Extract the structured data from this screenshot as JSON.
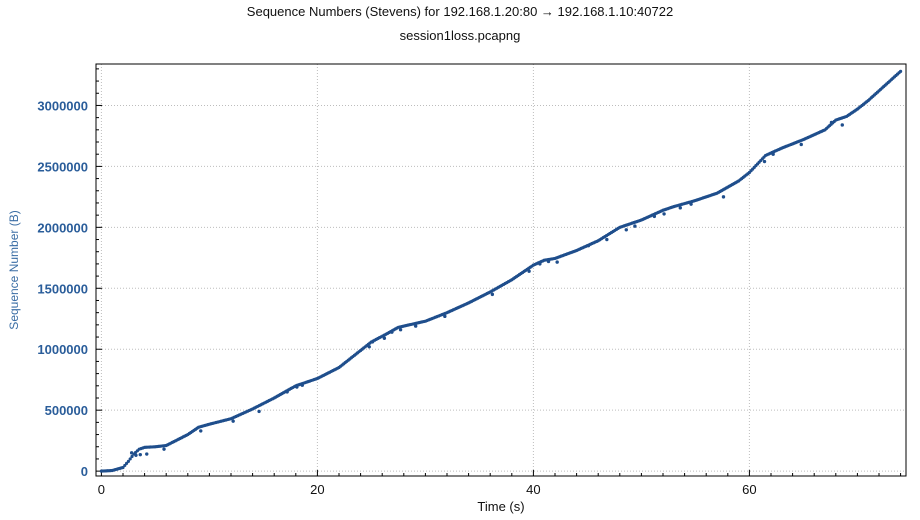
{
  "chart_data": {
    "type": "scatter",
    "title": "Sequence Numbers (Stevens) for 192.168.1.20:80 → 192.168.1.10:40722",
    "subtitle": "session1loss.pcapng",
    "xlabel": "Time (s)",
    "ylabel": "Sequence Number (B)",
    "xlim": [
      -0.5,
      74.5
    ],
    "ylim": [
      -40000,
      3340000
    ],
    "xticks": [
      0,
      20,
      40,
      60
    ],
    "yticks": [
      0,
      500000,
      1000000,
      1500000,
      2000000,
      2500000,
      3000000
    ],
    "ytick_labels": [
      "0",
      "500000",
      "1000000",
      "1500000",
      "2000000",
      "2500000",
      "3000000"
    ],
    "xtick_labels": [
      "0",
      "20",
      "40",
      "60"
    ],
    "grid": true,
    "series_color": "#1f4e8c",
    "points": [
      [
        0,
        0
      ],
      [
        1,
        5000
      ],
      [
        2,
        30000
      ],
      [
        2.5,
        80000
      ],
      [
        3,
        140000
      ],
      [
        3.5,
        180000
      ],
      [
        4,
        195000
      ],
      [
        5,
        200000
      ],
      [
        6,
        210000
      ],
      [
        8,
        300000
      ],
      [
        9,
        360000
      ],
      [
        10,
        385000
      ],
      [
        12,
        430000
      ],
      [
        14,
        510000
      ],
      [
        16,
        600000
      ],
      [
        18,
        700000
      ],
      [
        19,
        730000
      ],
      [
        20,
        760000
      ],
      [
        22,
        850000
      ],
      [
        24,
        990000
      ],
      [
        25,
        1060000
      ],
      [
        26.5,
        1130000
      ],
      [
        27.5,
        1180000
      ],
      [
        30,
        1230000
      ],
      [
        32,
        1300000
      ],
      [
        34,
        1380000
      ],
      [
        36,
        1470000
      ],
      [
        38,
        1570000
      ],
      [
        40,
        1690000
      ],
      [
        41,
        1730000
      ],
      [
        42,
        1745000
      ],
      [
        44,
        1810000
      ],
      [
        46,
        1890000
      ],
      [
        48,
        2000000
      ],
      [
        50,
        2060000
      ],
      [
        52,
        2140000
      ],
      [
        53,
        2170000
      ],
      [
        55,
        2220000
      ],
      [
        57,
        2280000
      ],
      [
        59,
        2380000
      ],
      [
        60,
        2450000
      ],
      [
        61.5,
        2590000
      ],
      [
        63,
        2650000
      ],
      [
        65,
        2720000
      ],
      [
        67,
        2800000
      ],
      [
        68,
        2880000
      ],
      [
        69,
        2910000
      ],
      [
        70,
        2970000
      ],
      [
        71,
        3040000
      ],
      [
        72,
        3120000
      ],
      [
        73,
        3200000
      ],
      [
        74,
        3280000
      ]
    ],
    "outliers": [
      [
        2.8,
        150000
      ],
      [
        3.2,
        130000
      ],
      [
        3.6,
        135000
      ],
      [
        4.2,
        140000
      ],
      [
        5.8,
        180000
      ],
      [
        9.2,
        330000
      ],
      [
        12.2,
        410000
      ],
      [
        14.6,
        490000
      ],
      [
        17.2,
        650000
      ],
      [
        18.1,
        690000
      ],
      [
        18.6,
        705000
      ],
      [
        24.8,
        1020000
      ],
      [
        25.1,
        1060000
      ],
      [
        26.2,
        1090000
      ],
      [
        26.9,
        1140000
      ],
      [
        27.7,
        1160000
      ],
      [
        29.1,
        1190000
      ],
      [
        31.8,
        1270000
      ],
      [
        36.2,
        1450000
      ],
      [
        39.6,
        1640000
      ],
      [
        40.6,
        1700000
      ],
      [
        41.4,
        1720000
      ],
      [
        42.2,
        1715000
      ],
      [
        45.1,
        1850000
      ],
      [
        46.8,
        1900000
      ],
      [
        48.6,
        1980000
      ],
      [
        49.4,
        2010000
      ],
      [
        51.2,
        2090000
      ],
      [
        52.1,
        2110000
      ],
      [
        53.6,
        2160000
      ],
      [
        54.6,
        2190000
      ],
      [
        57.6,
        2250000
      ],
      [
        61.4,
        2540000
      ],
      [
        62.2,
        2600000
      ],
      [
        64.8,
        2680000
      ],
      [
        67.6,
        2860000
      ],
      [
        68.6,
        2840000
      ]
    ]
  }
}
